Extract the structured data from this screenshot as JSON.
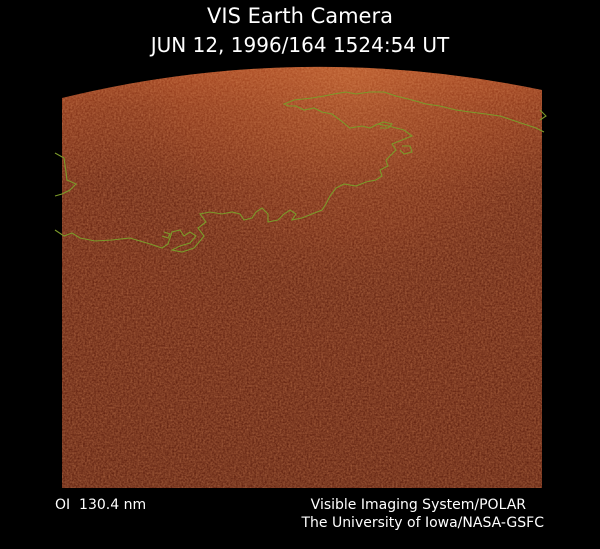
{
  "header": {
    "title": "VIS Earth Camera",
    "timestamp": "JUN 12, 1996/164 1524:54 UT"
  },
  "footer": {
    "filter": "OI  130.4 nm",
    "instrument": "Visible Imaging System/POLAR",
    "credit": "The University of Iowa/NASA-GSFC"
  }
}
